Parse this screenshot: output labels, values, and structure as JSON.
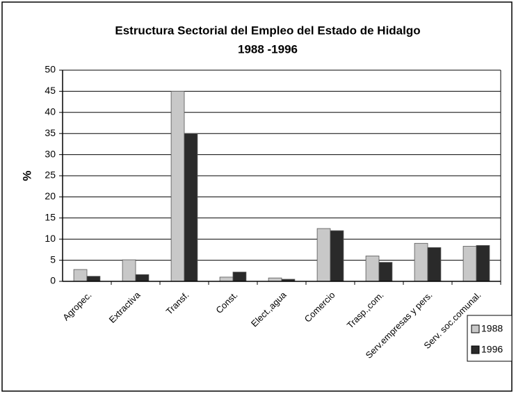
{
  "chart_data": {
    "type": "bar",
    "title": "Estructura Sectorial del Empleo del Estado de Hidalgo",
    "subtitle": "1988 -1996",
    "y_label": "%",
    "categories": [
      "Agropec.",
      "Extractiva",
      "Transf.",
      "Const.",
      "Elect.,agua",
      "Comercio",
      "Trasp.,com.",
      "Serv.empresas y pers.",
      "Serv. soc.comunal."
    ],
    "series": [
      {
        "name": "1988",
        "color": "#c8c8c8",
        "values": [
          2.8,
          5.1,
          45,
          1.0,
          0.8,
          12.5,
          6,
          9,
          8.3
        ]
      },
      {
        "name": "1996",
        "color": "#2a2a2a",
        "values": [
          1.2,
          1.6,
          35,
          2.2,
          0.5,
          12,
          4.5,
          8,
          8.5
        ]
      }
    ],
    "ylim": [
      0,
      50
    ],
    "yticks": [
      0,
      5,
      10,
      15,
      20,
      25,
      30,
      35,
      40,
      45,
      50
    ],
    "grid": true,
    "legend": "right"
  }
}
